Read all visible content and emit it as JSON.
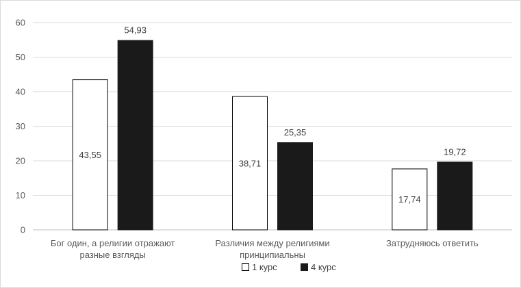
{
  "chart_data": {
    "type": "bar",
    "categories": [
      [
        "Бог один, а религии отражают",
        "разные взгляды"
      ],
      [
        "Различия между религиями",
        "принципиальны"
      ],
      [
        "Затрудняюсь ответить"
      ]
    ],
    "series": [
      {
        "name": "1 курс",
        "values": [
          43.55,
          38.71,
          17.74
        ],
        "labels": [
          "43,55",
          "38,71",
          "17,74"
        ],
        "fill": "#ffffff",
        "stroke": "#000000",
        "label_position": "inside"
      },
      {
        "name": "4 курс",
        "values": [
          54.93,
          25.35,
          19.72
        ],
        "labels": [
          "54,93",
          "25,35",
          "19,72"
        ],
        "fill": "#1a1a1a",
        "stroke": "#1a1a1a",
        "label_position": "above"
      }
    ],
    "y_ticks": [
      0,
      10,
      20,
      30,
      40,
      50,
      60
    ],
    "ylim": [
      0,
      60
    ],
    "grid": true,
    "legend_position": "bottom",
    "title": "",
    "xlabel": "",
    "ylabel": ""
  }
}
